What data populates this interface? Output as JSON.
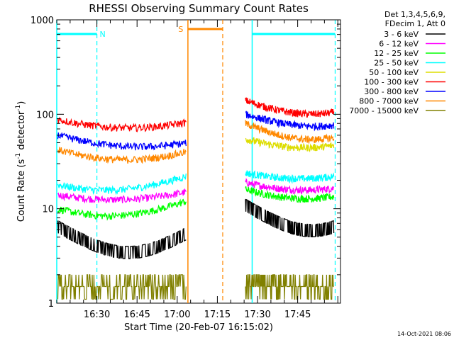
{
  "chart_data": {
    "type": "line",
    "title": "RHESSI Observing Summary Count Rates",
    "xlabel": "Start Time (20-Feb-07 16:15:02)",
    "ylabel_main": "Count Rate (s",
    "ylabel_sup1": "-1",
    "ylabel_mid": " detector",
    "ylabel_sup2": "-1",
    "ylabel_end": ")",
    "yscale": "log",
    "ylim": [
      1,
      1000
    ],
    "x_ticks": [
      "16:30",
      "16:45",
      "17:00",
      "17:15",
      "17:30",
      "17:45"
    ],
    "y_ticks": [
      "1000",
      "100",
      "10",
      "1"
    ],
    "x_tick_minutes": [
      15,
      30,
      45,
      60,
      75,
      90
    ],
    "xlim_minutes": [
      0,
      106
    ],
    "gaps_minutes": [
      [
        48.5,
        70
      ]
    ],
    "legend_header": [
      "Det 1,3,4,5,6,9,",
      "FDecim 1, Att 0"
    ],
    "legend_placement": "top-right outside",
    "series": [
      {
        "name": "3 - 6 keV",
        "color": "#000000",
        "before_gap": [
          6.5,
          3.5,
          5.5
        ],
        "after_gap": [
          11,
          6.5,
          6.5
        ]
      },
      {
        "name": "6 - 12 keV",
        "color": "#ff00ff",
        "before_gap": [
          14,
          12.5,
          15
        ],
        "after_gap": [
          19,
          16,
          16.5
        ]
      },
      {
        "name": "12 - 25 keV",
        "color": "#00ff00",
        "before_gap": [
          10,
          8.5,
          12
        ],
        "after_gap": [
          16,
          13,
          13.5
        ]
      },
      {
        "name": "25 - 50 keV",
        "color": "#00ffff",
        "before_gap": [
          18,
          16,
          22
        ],
        "after_gap": [
          24,
          21,
          22
        ]
      },
      {
        "name": "50 - 100 keV",
        "color": "#dddd00",
        "before_gap": [
          0,
          0,
          0
        ],
        "after_gap": [
          55,
          45,
          47
        ]
      },
      {
        "name": "100 - 300 keV",
        "color": "#ff0000",
        "before_gap": [
          88,
          72,
          82
        ],
        "after_gap": [
          140,
          105,
          105
        ]
      },
      {
        "name": "300 - 800 keV",
        "color": "#0000ff",
        "before_gap": [
          60,
          46,
          50
        ],
        "after_gap": [
          100,
          78,
          77
        ]
      },
      {
        "name": "800 - 7000 keV",
        "color": "#ff8800",
        "before_gap": [
          42,
          33,
          40
        ],
        "after_gap": [
          80,
          57,
          57
        ]
      },
      {
        "name": "7000 - 15000 keV",
        "color": "#808000",
        "before_gap": [
          1.5,
          1.5,
          1.5
        ],
        "after_gap": [
          1.5,
          1.5,
          1.5
        ]
      }
    ],
    "annotations": [
      {
        "label": "N",
        "color": "#00ffff",
        "bar_minutes": [
          0,
          15
        ],
        "line_minutes": 15
      },
      {
        "label": "S",
        "color": "#ff8800",
        "bar_minutes": [
          49,
          62
        ],
        "line_minutes": 62
      },
      {
        "label": "",
        "color": "#00ffff",
        "bar_minutes": [
          73,
          104
        ],
        "line_minutes": 104
      }
    ],
    "footer_date": "14-Oct-2021 08:06"
  }
}
